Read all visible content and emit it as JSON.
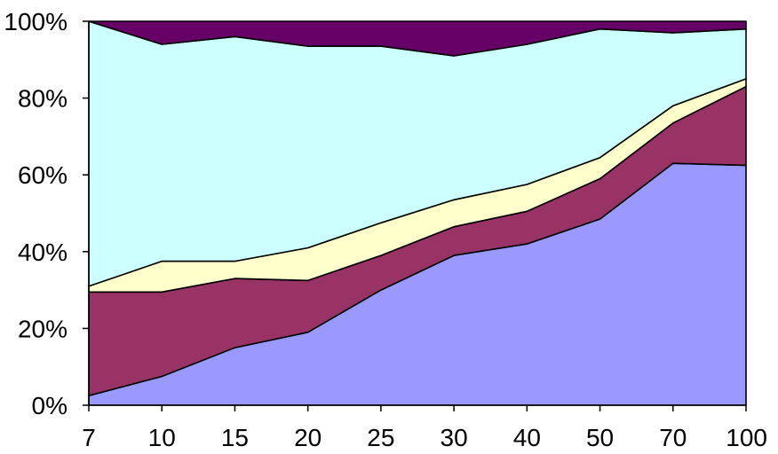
{
  "chart_data": {
    "type": "area",
    "stacked": "percent",
    "x": [
      "7",
      "10",
      "15",
      "20",
      "25",
      "30",
      "40",
      "50",
      "70",
      "100"
    ],
    "series": [
      {
        "color": "#9999ff",
        "values": [
          2.5,
          7.5,
          15,
          19,
          30,
          39,
          42,
          48.5,
          63,
          62.5
        ]
      },
      {
        "color": "#993366",
        "values": [
          27,
          22,
          18,
          13.5,
          9,
          7.5,
          8.5,
          10.5,
          10.5,
          20.5
        ]
      },
      {
        "color": "#ffffcc",
        "values": [
          1.5,
          8,
          4.5,
          8.5,
          8.5,
          7,
          7,
          5.5,
          4.5,
          2
        ]
      },
      {
        "color": "#ccffff",
        "values": [
          69,
          56.5,
          58.5,
          52.5,
          46,
          37.5,
          36.5,
          33.5,
          19,
          13
        ]
      },
      {
        "color": "#660066",
        "values": [
          0,
          6,
          4,
          6.5,
          6.5,
          9,
          6,
          2,
          3,
          2
        ]
      }
    ],
    "ylim": [
      0,
      100
    ],
    "y_ticks": [
      "0%",
      "20%",
      "40%",
      "60%",
      "80%",
      "100%"
    ],
    "legend": "none",
    "grid": false
  }
}
